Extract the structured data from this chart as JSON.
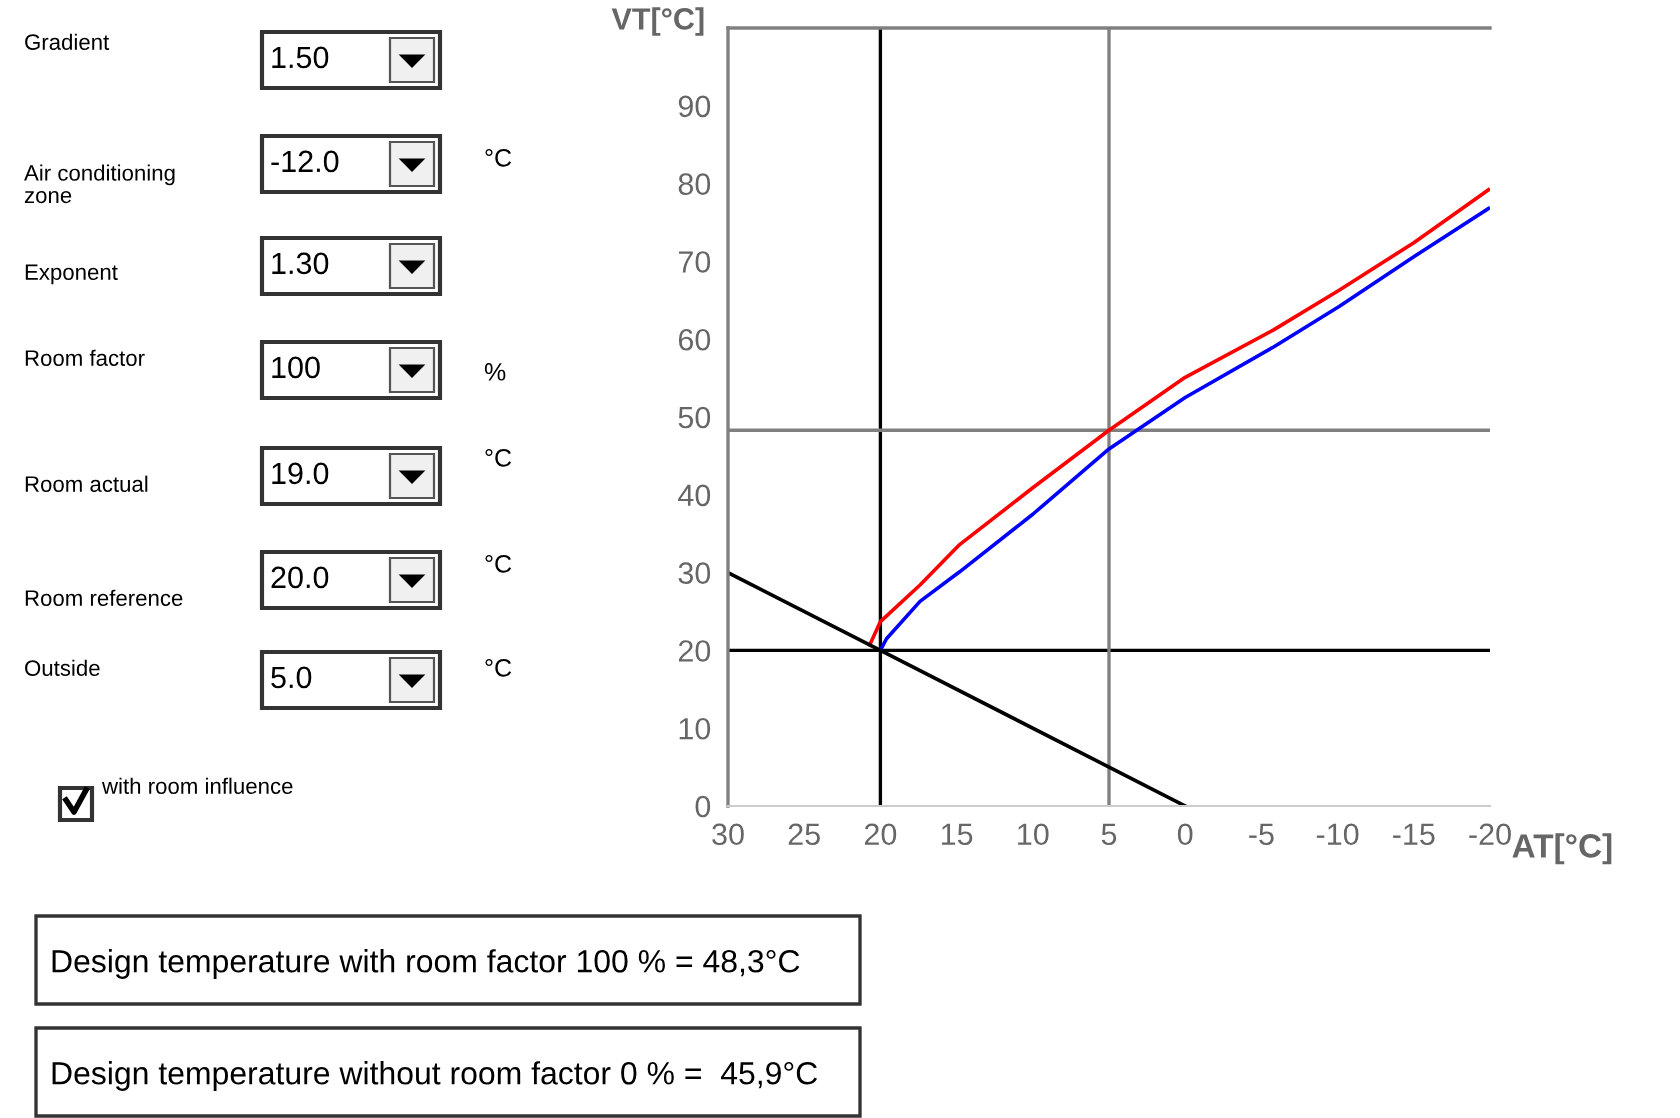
{
  "chart_data": {
    "type": "line",
    "xlabel": "AT[°C]",
    "ylabel": "VT[°C]",
    "xlim": [
      30,
      -20
    ],
    "xticks": [
      30,
      25,
      20,
      15,
      10,
      5,
      0,
      -5,
      -10,
      -15,
      -20
    ],
    "ylim": [
      0,
      100
    ],
    "yticks": [
      0,
      10,
      20,
      30,
      40,
      50,
      60,
      70,
      80,
      90
    ],
    "grid": false,
    "legend": false,
    "series": [
      {
        "color": "#ff0000",
        "x": [
          20.7,
          20,
          17.4,
          14.8,
          10,
          5,
          0,
          -5.8,
          -10.1,
          -15,
          -19.9
        ],
        "values": [
          20.7,
          23.7,
          28.4,
          33.6,
          40.9,
          48.3,
          55.1,
          61.2,
          66.3,
          72.4,
          79.2
        ]
      },
      {
        "color": "#0000ff",
        "x": [
          20,
          19.6,
          17.4,
          14.8,
          10,
          5,
          0,
          -5.8,
          -10.1,
          -15,
          -19.9
        ],
        "values": [
          20,
          21.5,
          26.3,
          30.1,
          37.5,
          45.9,
          52.5,
          59,
          64.2,
          70.6,
          76.8
        ]
      },
      {
        "color": "#000000",
        "x": [
          30,
          20,
          5,
          0
        ],
        "values": [
          30,
          20,
          5,
          0
        ]
      }
    ],
    "ref_lines": [
      {
        "axis": "x",
        "value": 20,
        "color": "#000000"
      },
      {
        "axis": "y",
        "value": 20,
        "color": "#000000"
      },
      {
        "axis": "x",
        "value": 5,
        "color": "#808080"
      },
      {
        "axis": "y",
        "value": 48.3,
        "color": "#808080"
      }
    ],
    "annotations": [
      "Gradient",
      "1.50",
      "Air conditioning zone",
      "-12.0",
      "°C",
      "Exponent",
      "1.30",
      "Room factor",
      "100",
      "%",
      "Room actual",
      "19.0",
      "°C",
      "Room reference",
      "20.0",
      "°C",
      "Outside",
      "5.0",
      "°C",
      "with room influence",
      "Design temperature with room factor 100 % = 48,3°C",
      "Design temperature without room factor 0 % =  45,9°C"
    ]
  }
}
